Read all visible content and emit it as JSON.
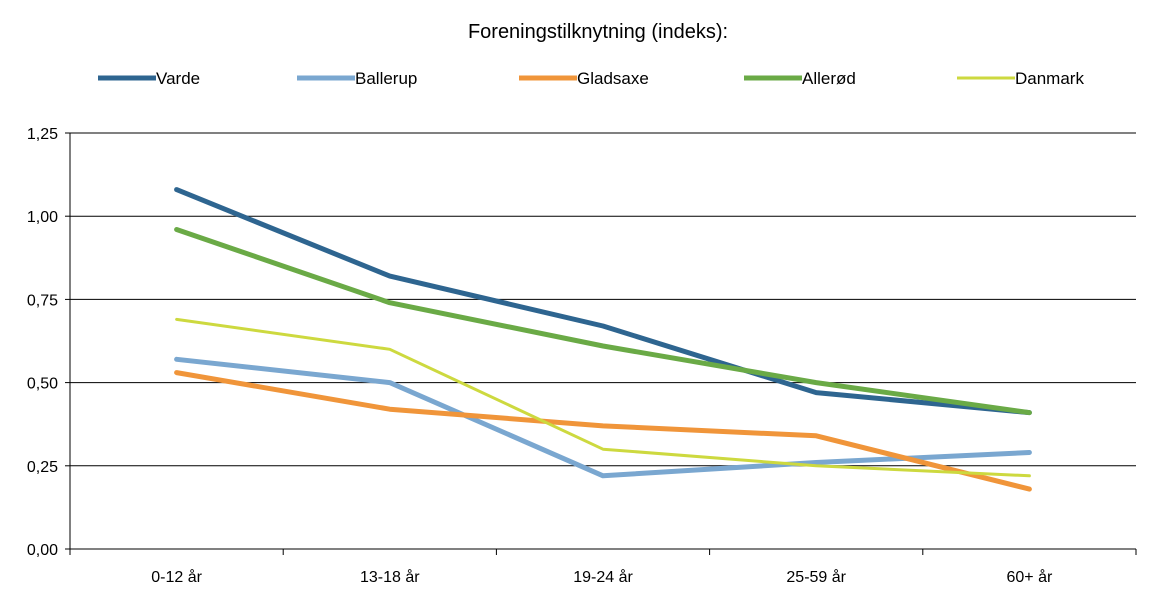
{
  "chart_data": {
    "type": "line",
    "title": "Foreningstilknytning (indeks):",
    "xlabel": "",
    "ylabel": "",
    "categories": [
      "0-12 år",
      "13-18 år",
      "19-24 år",
      "25-59 år",
      "60+ år"
    ],
    "ylim": [
      0,
      1.25
    ],
    "yticks": [
      0.0,
      0.25,
      0.5,
      0.75,
      1.0,
      1.25
    ],
    "ytick_labels": [
      "0,00",
      "0,25",
      "0,50",
      "0,75",
      "1,00",
      "1,25"
    ],
    "grid": true,
    "legend_position": "top",
    "series": [
      {
        "name": "Varde",
        "color": "#2e6590",
        "values": [
          1.08,
          0.82,
          0.67,
          0.47,
          0.41
        ]
      },
      {
        "name": "Ballerup",
        "color": "#7aa7d0",
        "values": [
          0.57,
          0.5,
          0.22,
          0.26,
          0.29
        ]
      },
      {
        "name": "Gladsaxe",
        "color": "#f0953a",
        "values": [
          0.53,
          0.42,
          0.37,
          0.34,
          0.18
        ]
      },
      {
        "name": "Allerød",
        "color": "#6aaa46",
        "values": [
          0.96,
          0.74,
          0.61,
          0.5,
          0.41
        ]
      },
      {
        "name": "Danmark",
        "color": "#cdd93f",
        "values": [
          0.69,
          0.6,
          0.3,
          0.25,
          0.22
        ]
      }
    ]
  }
}
